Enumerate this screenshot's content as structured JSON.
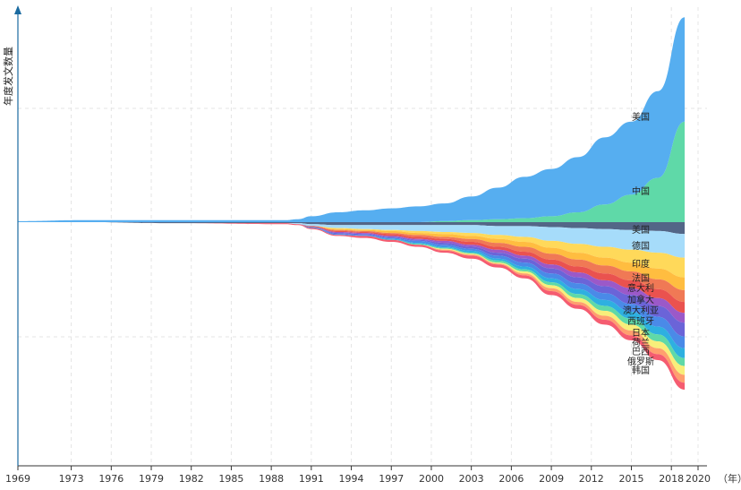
{
  "chart_data": {
    "type": "area",
    "subtype": "streamgraph",
    "xlabel": "",
    "x_unit_label": "（年）",
    "ylabel": "年度发文数量",
    "x_ticks": [
      "1969",
      "1973",
      "1976",
      "1979",
      "1982",
      "1985",
      "1988",
      "1991",
      "1994",
      "1997",
      "2000",
      "2003",
      "2006",
      "2009",
      "2012",
      "2015",
      "2018",
      "2020"
    ],
    "years": [
      1969,
      1974,
      1980,
      1989,
      1990,
      1991,
      1993,
      1995,
      1997,
      1999,
      2001,
      2003,
      2005,
      2007,
      2009,
      2011,
      2013,
      2015,
      2017,
      2019
    ],
    "grid": true,
    "grid_style": "dashed",
    "baseline": "center",
    "series_up": [
      {
        "name": "中国",
        "color": "#5fd9a8",
        "values": [
          0,
          0,
          0,
          0,
          0,
          0,
          0,
          0,
          0,
          0,
          1,
          2,
          3,
          4,
          6,
          10,
          18,
          28,
          45,
          102
        ]
      },
      {
        "name": "美国",
        "color": "#56aef0",
        "values": [
          1,
          2,
          2,
          2,
          3,
          6,
          10,
          12,
          14,
          16,
          18,
          24,
          32,
          42,
          48,
          56,
          68,
          74,
          88,
          106
        ]
      }
    ],
    "series_down": [
      {
        "name": "美国",
        "color": "#536687",
        "values": [
          0,
          0,
          1,
          1,
          1,
          2,
          3,
          3,
          3,
          3,
          3,
          3,
          4,
          4,
          5,
          6,
          7,
          8,
          9,
          12
        ]
      },
      {
        "name": "德国",
        "color": "#a6dcfa",
        "values": [
          0,
          0,
          0,
          0,
          1,
          2,
          3,
          4,
          5,
          6,
          7,
          8,
          9,
          11,
          14,
          16,
          18,
          20,
          22,
          24
        ]
      },
      {
        "name": "印度",
        "color": "#ffd95a",
        "values": [
          0,
          0,
          0,
          0,
          0,
          0,
          1,
          1,
          1,
          2,
          2,
          3,
          4,
          5,
          7,
          9,
          11,
          13,
          16,
          20
        ]
      },
      {
        "name": "法国",
        "color": "#ffbd40",
        "values": [
          0,
          0,
          0,
          0,
          0,
          0,
          1,
          1,
          2,
          2,
          3,
          3,
          4,
          5,
          6,
          7,
          8,
          9,
          11,
          13
        ]
      },
      {
        "name": "意大利",
        "color": "#f07955",
        "values": [
          0,
          0,
          0,
          0,
          0,
          0,
          1,
          1,
          1,
          2,
          2,
          3,
          4,
          5,
          6,
          7,
          8,
          9,
          10,
          12
        ]
      },
      {
        "name": "加拿大",
        "color": "#ea524f",
        "values": [
          0,
          0,
          0,
          0,
          0,
          1,
          1,
          1,
          2,
          2,
          2,
          3,
          3,
          4,
          5,
          6,
          7,
          8,
          9,
          11
        ]
      },
      {
        "name": "澳大利亚",
        "color": "#9b59c8",
        "values": [
          0,
          0,
          0,
          0,
          0,
          0,
          1,
          1,
          1,
          1,
          2,
          2,
          3,
          3,
          4,
          5,
          6,
          7,
          8,
          10
        ]
      },
      {
        "name": "西班牙",
        "color": "#6b64d8",
        "values": [
          0,
          0,
          0,
          0,
          0,
          0,
          1,
          1,
          1,
          1,
          2,
          2,
          3,
          4,
          5,
          6,
          7,
          9,
          11,
          14
        ]
      },
      {
        "name": "日本",
        "color": "#4a8ae8",
        "values": [
          0,
          0,
          0,
          0,
          0,
          1,
          1,
          1,
          1,
          2,
          2,
          2,
          3,
          4,
          5,
          6,
          7,
          8,
          10,
          12
        ]
      },
      {
        "name": "荷兰",
        "color": "#2eb0e0",
        "values": [
          0,
          0,
          0,
          0,
          0,
          0,
          0,
          0,
          1,
          1,
          1,
          2,
          2,
          3,
          4,
          5,
          6,
          7,
          8,
          10
        ]
      },
      {
        "name": "巴西",
        "color": "#5fd9a8",
        "values": [
          0,
          0,
          0,
          0,
          0,
          0,
          0,
          0,
          0,
          1,
          1,
          1,
          2,
          2,
          3,
          4,
          5,
          6,
          7,
          8
        ]
      },
      {
        "name": "俄罗斯",
        "color": "#f8ee7a",
        "values": [
          0,
          0,
          0,
          0,
          0,
          0,
          0,
          0,
          0,
          0,
          1,
          1,
          1,
          2,
          3,
          4,
          5,
          6,
          7,
          9
        ]
      },
      {
        "name": "韩国",
        "color": "#ff9f6e",
        "values": [
          0,
          0,
          0,
          0,
          0,
          0,
          0,
          0,
          0,
          0,
          1,
          1,
          1,
          2,
          3,
          3,
          4,
          5,
          6,
          8
        ]
      },
      {
        "name": "",
        "color": "#f55c70",
        "values": [
          0,
          0,
          0,
          1,
          1,
          1,
          1,
          2,
          2,
          2,
          2,
          3,
          3,
          3,
          4,
          4,
          5,
          5,
          6,
          7
        ]
      }
    ]
  }
}
